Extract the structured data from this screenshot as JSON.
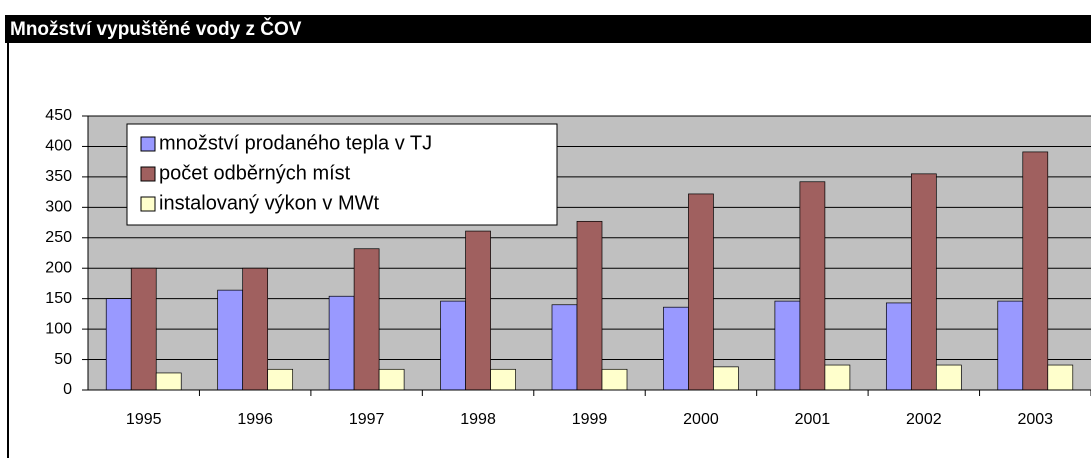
{
  "chart_data": {
    "type": "bar",
    "title": "Množství vypuštěné vody z ČOV",
    "categories": [
      "1995",
      "1996",
      "1997",
      "1998",
      "1999",
      "2000",
      "2001",
      "2002",
      "2003"
    ],
    "series": [
      {
        "name": "množství prodaného tepla v TJ",
        "color": "#9999ff",
        "values": [
          150,
          164,
          154,
          146,
          140,
          136,
          146,
          143,
          146
        ]
      },
      {
        "name": "počet odběrných míst",
        "color": "#a0605f",
        "values": [
          200,
          200,
          232,
          261,
          277,
          322,
          342,
          355,
          391
        ]
      },
      {
        "name": "instalovaný výkon v MWt",
        "color": "#ffffcc",
        "values": [
          28,
          34,
          34,
          34,
          34,
          38,
          41,
          41,
          41
        ]
      }
    ],
    "ylim": [
      0,
      450
    ],
    "yticks": [
      0,
      50,
      100,
      150,
      200,
      250,
      300,
      350,
      400,
      450
    ],
    "grid": true,
    "legend": "top-left"
  }
}
